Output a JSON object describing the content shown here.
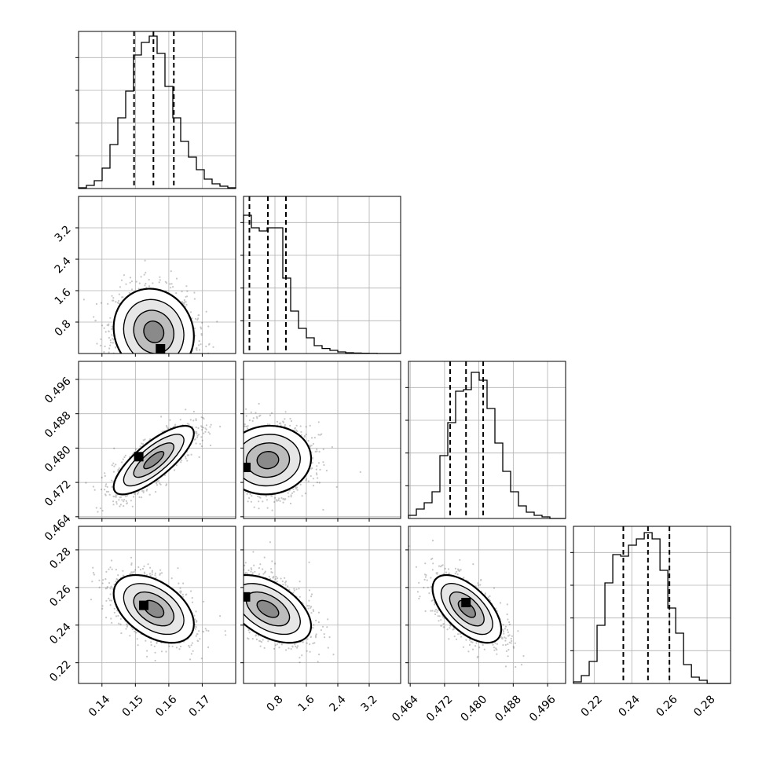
{
  "chart_data": {
    "type": "corner",
    "parameters": [
      {
        "range": [
          0.133,
          0.18
        ],
        "ticks": [
          "0.14",
          "0.15",
          "0.16",
          "0.17"
        ],
        "tick_values": [
          0.14,
          0.15,
          0.16,
          0.17
        ]
      },
      {
        "range": [
          0.0,
          4.0
        ],
        "ticks": [
          "0.8",
          "1.6",
          "2.4",
          "3.2"
        ],
        "tick_values": [
          0.8,
          1.6,
          2.4,
          3.2
        ]
      },
      {
        "range": [
          0.4636,
          0.5002
        ],
        "ticks": [
          "0.464",
          "0.472",
          "0.480",
          "0.488",
          "0.496"
        ],
        "tick_values": [
          0.464,
          0.472,
          0.48,
          0.488,
          0.496
        ]
      },
      {
        "range": [
          0.209,
          0.2925
        ],
        "ticks": [
          "0.22",
          "0.24",
          "0.26",
          "0.28"
        ],
        "tick_values": [
          0.22,
          0.24,
          0.26,
          0.28
        ]
      }
    ],
    "quantiles": [
      [
        0.1496,
        0.1554,
        0.1615
      ],
      [
        0.15,
        0.62,
        1.08
      ],
      [
        0.4733,
        0.477,
        0.481
      ],
      [
        0.2355,
        0.2486,
        0.26
      ]
    ],
    "histograms": [
      {
        "edges_start": 0.133,
        "bin_width": 0.00235,
        "heights": [
          0.005,
          0.02,
          0.05,
          0.13,
          0.28,
          0.45,
          0.62,
          0.85,
          0.93,
          0.97,
          0.86,
          0.65,
          0.45,
          0.3,
          0.2,
          0.12,
          0.06,
          0.03,
          0.015,
          0.005
        ]
      },
      {
        "edges_start": 0.0,
        "bin_width": 0.2,
        "heights": [
          0.88,
          0.8,
          0.78,
          0.8,
          0.8,
          0.48,
          0.27,
          0.16,
          0.1,
          0.05,
          0.032,
          0.02,
          0.01,
          0.005,
          0.003,
          0.002,
          0.001,
          0.0,
          0.0,
          0.0
        ]
      },
      {
        "edges_start": 0.4636,
        "bin_width": 0.00183,
        "heights": [
          0.02,
          0.06,
          0.1,
          0.17,
          0.4,
          0.61,
          0.81,
          0.82,
          0.93,
          0.88,
          0.7,
          0.48,
          0.3,
          0.17,
          0.08,
          0.04,
          0.02,
          0.01,
          0.0,
          0.0
        ]
      },
      {
        "edges_start": 0.209,
        "bin_width": 0.00418,
        "heights": [
          0.01,
          0.05,
          0.14,
          0.37,
          0.64,
          0.82,
          0.81,
          0.88,
          0.92,
          0.96,
          0.92,
          0.72,
          0.48,
          0.32,
          0.12,
          0.04,
          0.02,
          0.0,
          0.0,
          0.0
        ]
      }
    ],
    "pair_stats": [
      {
        "row": 1,
        "col": 0,
        "mean": [
          0.1555,
          0.55
        ],
        "sd": [
          0.006,
          0.55
        ],
        "rho": -0.1,
        "core": [
          0.1575,
          0.12
        ],
        "fold_y": true
      },
      {
        "row": 2,
        "col": 0,
        "mean": [
          0.1555,
          0.4772
        ],
        "sd": [
          0.006,
          0.004
        ],
        "rho": 0.78,
        "core": [
          0.151,
          0.478
        ]
      },
      {
        "row": 2,
        "col": 1,
        "mean": [
          0.62,
          0.4772
        ],
        "sd": [
          0.55,
          0.004
        ],
        "rho": 0.05,
        "core": [
          0.06,
          0.4755
        ],
        "fold_x": true
      },
      {
        "row": 3,
        "col": 0,
        "mean": [
          0.1555,
          0.2486
        ],
        "sd": [
          0.006,
          0.009
        ],
        "rho": -0.45,
        "core": [
          0.1525,
          0.2505
        ]
      },
      {
        "row": 3,
        "col": 1,
        "mean": [
          0.62,
          0.2486
        ],
        "sd": [
          0.55,
          0.009
        ],
        "rho": -0.5,
        "core": [
          0.05,
          0.255
        ],
        "fold_x": true
      },
      {
        "row": 3,
        "col": 2,
        "mean": [
          0.4772,
          0.2486
        ],
        "sd": [
          0.004,
          0.009
        ],
        "rho": -0.6,
        "core": [
          0.477,
          0.252
        ]
      }
    ],
    "grid": true,
    "colors": {
      "frame": "#000000",
      "grid": "#b0b0b0",
      "points": "#000000"
    }
  }
}
